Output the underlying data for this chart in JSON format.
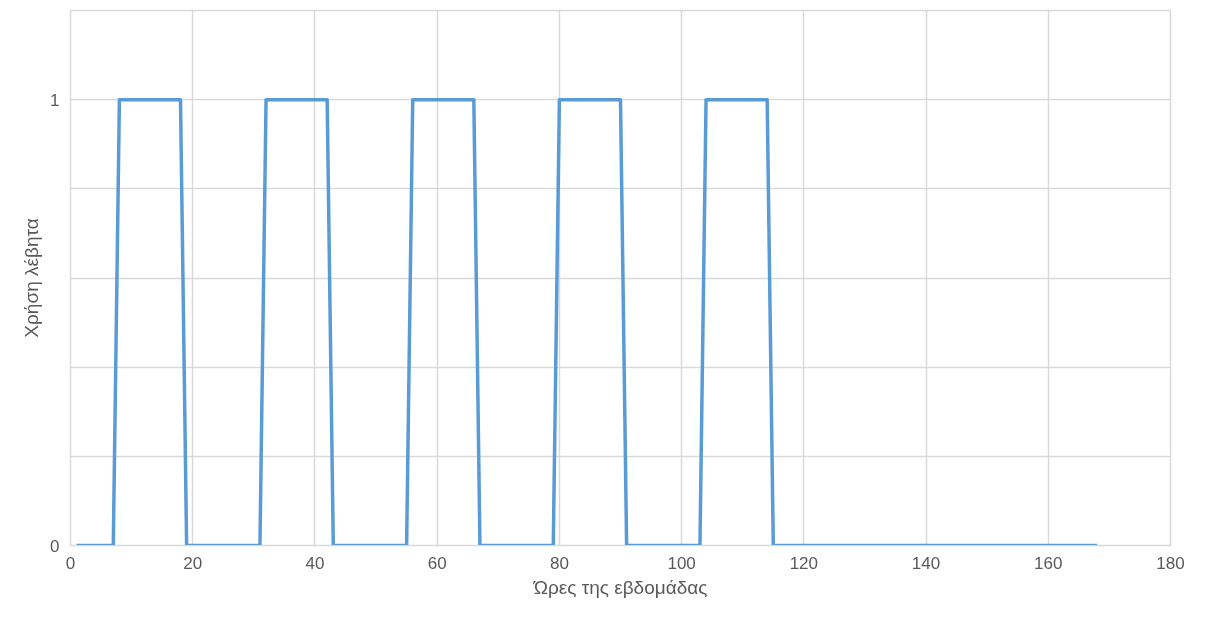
{
  "chart_data": {
    "type": "line",
    "xlabel": "Ώρες της εβδομάδας",
    "ylabel": "Χρήση λέβητα",
    "series": [
      {
        "color": "#5b9bd5",
        "x": [
          1,
          7,
          8,
          18,
          19,
          31,
          32,
          42,
          43,
          55,
          56,
          66,
          67,
          79,
          80,
          90,
          91,
          103,
          104,
          114,
          115,
          168
        ],
        "values": [
          0,
          0,
          1,
          1,
          0,
          0,
          1,
          1,
          0,
          0,
          1,
          1,
          0,
          0,
          1,
          1,
          0,
          0,
          1,
          1,
          0,
          0
        ]
      }
    ],
    "xlim": [
      0,
      180
    ],
    "xticks": [
      0,
      20,
      40,
      60,
      80,
      100,
      120,
      140,
      160,
      180
    ],
    "ylim": [
      0,
      1.2
    ],
    "yticks": [
      0,
      {
        "value": 0.2,
        "label": null
      },
      {
        "value": 0.4,
        "label": null
      },
      {
        "value": 0.6,
        "label": null
      },
      {
        "value": 0.8,
        "label": null
      },
      1
    ],
    "grid": true,
    "marker": "none",
    "line_style": "solid"
  }
}
